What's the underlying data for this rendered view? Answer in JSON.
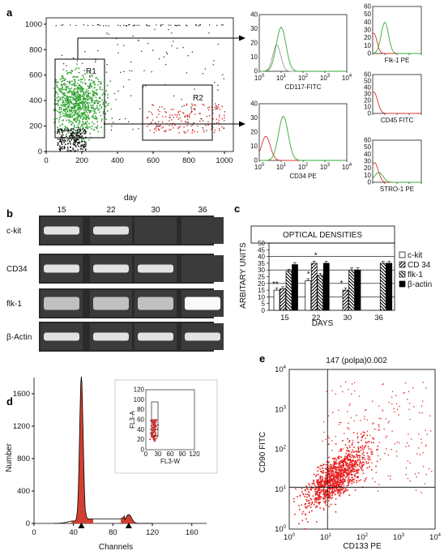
{
  "panels": {
    "a": {
      "letter": "a",
      "gate_labels": [
        "R1",
        "R2"
      ],
      "scatter": {
        "x_ticks": [
          "0",
          "200",
          "400",
          "600",
          "800",
          "1000"
        ],
        "y_ticks": [
          "0",
          "200",
          "400",
          "600",
          "800",
          "1000"
        ],
        "xlabel": "day"
      },
      "histograms": [
        {
          "id": "cd117",
          "label": "CD117-FITC"
        },
        {
          "id": "cd34",
          "label": "CD34 PE"
        },
        {
          "id": "flk1",
          "label": "Flk-1 PE"
        },
        {
          "id": "cd45",
          "label": "CD45 FITC"
        },
        {
          "id": "stro1",
          "label": "STRO-1 PE"
        }
      ],
      "hist_y_ticks_small": [
        "0",
        "10",
        "20",
        "30",
        "40",
        "50",
        "60"
      ],
      "hist_y_ticks_mid": [
        "0",
        "10",
        "20",
        "30",
        "40"
      ],
      "log_base": "10",
      "log_exps": [
        "0",
        "1",
        "2",
        "3",
        "4"
      ]
    },
    "b": {
      "letter": "b",
      "days": [
        "15",
        "22",
        "30",
        "36"
      ],
      "rows": [
        "c-kit",
        "CD34",
        "flk-1",
        "β-Actin"
      ]
    },
    "c": {
      "letter": "c",
      "title": "OPTICAL DENSITIES",
      "star": "*",
      "stars2": "**"
    },
    "d": {
      "letter": "d",
      "xlabel": "Channels",
      "ylabel": "Number",
      "y_ticks": [
        "0",
        "400",
        "800",
        "1200",
        "1600"
      ],
      "x_ticks": [
        "0",
        "40",
        "80",
        "120",
        "160"
      ],
      "inset": {
        "xlabel": "FL3-W",
        "ylabel": "FL3-A",
        "x_ticks": [
          "0",
          "30",
          "60",
          "90",
          "120"
        ],
        "y_ticks": [
          "0",
          "20",
          "40",
          "60",
          "80",
          "100",
          "120"
        ]
      }
    },
    "e": {
      "letter": "e",
      "title": "147 (polpa)0.002",
      "xlabel": "CD133 PE",
      "ylabel": "CD90 FITC",
      "log_base": "10",
      "log_exps": [
        "0",
        "1",
        "2",
        "3",
        "4"
      ]
    }
  },
  "chart_data": [
    {
      "type": "bar",
      "title": "OPTICAL DENSITIES",
      "xlabel": "DAYS",
      "ylabel": "ARBITARY UNITS",
      "categories": [
        "15",
        "22",
        "30",
        "36"
      ],
      "ylim": [
        0,
        50
      ],
      "y_ticks": [
        0,
        5,
        10,
        15,
        20,
        25,
        30,
        35,
        40,
        45,
        50
      ],
      "legend": "right",
      "series": [
        {
          "name": "c-kit",
          "values": [
            15,
            22,
            0,
            0
          ]
        },
        {
          "name": "CD 34",
          "values": [
            16,
            35,
            15,
            0
          ]
        },
        {
          "name": "flk-1",
          "values": [
            29,
            26,
            30,
            35
          ]
        },
        {
          "name": "β-actin",
          "values": [
            34,
            35,
            30,
            35
          ]
        }
      ]
    }
  ]
}
